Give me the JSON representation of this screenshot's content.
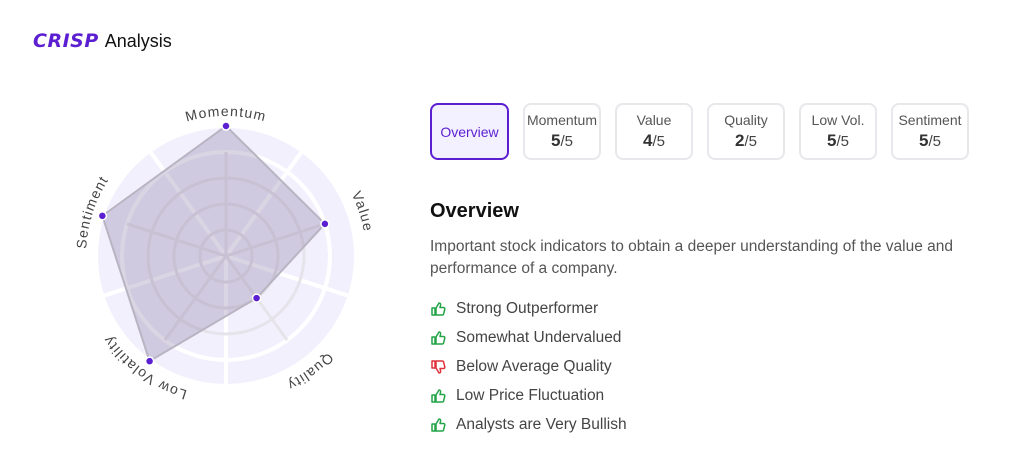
{
  "header": {
    "logo": "CRISP",
    "title": "Analysis"
  },
  "colors": {
    "accent": "#5b1fd1",
    "positive": "#22a447",
    "negative": "#e0303a"
  },
  "chart_data": {
    "type": "radar",
    "axes": [
      "Momentum",
      "Value",
      "Quality",
      "Low Volatility",
      "Sentiment"
    ],
    "values": [
      5,
      4,
      2,
      5,
      5
    ],
    "range": [
      0,
      5
    ]
  },
  "tabs": [
    {
      "label": "Overview"
    },
    {
      "label": "Momentum",
      "score": "5",
      "max": "/5"
    },
    {
      "label": "Value",
      "score": "4",
      "max": "/5"
    },
    {
      "label": "Quality",
      "score": "2",
      "max": "/5"
    },
    {
      "label": "Low Vol.",
      "score": "5",
      "max": "/5"
    },
    {
      "label": "Sentiment",
      "score": "5",
      "max": "/5"
    }
  ],
  "overview": {
    "title": "Overview",
    "description": "Important stock indicators to obtain a deeper understanding of the value and performance of a company.",
    "items": [
      {
        "text": "Strong Outperformer",
        "icon": "thumbs-up"
      },
      {
        "text": "Somewhat Undervalued",
        "icon": "thumbs-up"
      },
      {
        "text": "Below Average Quality",
        "icon": "thumbs-down"
      },
      {
        "text": "Low Price Fluctuation",
        "icon": "thumbs-up"
      },
      {
        "text": "Analysts are Very Bullish",
        "icon": "thumbs-up"
      }
    ]
  }
}
